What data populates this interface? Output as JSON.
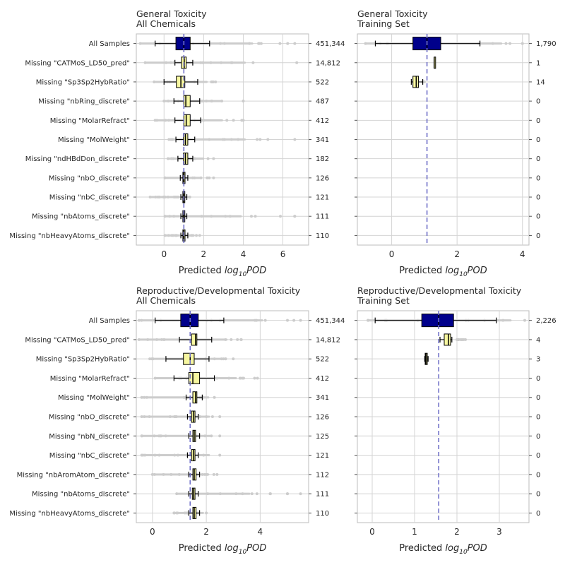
{
  "chart_data": [
    {
      "type": "box",
      "title_lines": [
        "General Toxicity",
        "All Chemicals"
      ],
      "xlabel_prefix": "Predicted ",
      "xlabel_math": "log",
      "xlabel_sub": "10",
      "xlabel_suffix": "POD",
      "xlim": [
        -1.4,
        7.3
      ],
      "xticks": [
        0,
        2,
        4,
        6
      ],
      "xtick_labels": [
        "0",
        "2",
        "4",
        "6"
      ],
      "median_line": 1.0,
      "show_category_labels": true,
      "categories": [
        "All Samples",
        "Missing \"CATMoS_LD50_pred\"",
        "Missing \"Sp3Sp2HybRatio\"",
        "Missing \"nbRing_discrete\"",
        "Missing \"MolarRefract\"",
        "Missing \"MolWeight\"",
        "Missing \"ndHBdDon_discrete\"",
        "Missing \"nbO_discrete\"",
        "Missing \"nbC_discrete\"",
        "Missing \"nbAtoms_discrete\"",
        "Missing \"nbHeavyAtoms_discrete\""
      ],
      "counts": [
        "451,344",
        "14,812",
        "522",
        "487",
        "412",
        "341",
        "182",
        "126",
        "121",
        "111",
        "110"
      ],
      "boxes": [
        {
          "q1": 0.6,
          "median": 1.0,
          "q3": 1.32,
          "whisker_low": -0.45,
          "whisker_high": 2.3,
          "fill": "#00008b",
          "flier_range": [
            -1.2,
            6.6
          ]
        },
        {
          "q1": 0.88,
          "median": 1.02,
          "q3": 1.12,
          "whisker_low": 0.55,
          "whisker_high": 1.45,
          "fill": "#f7f7a0",
          "flier_range": [
            -0.95,
            6.7
          ]
        },
        {
          "q1": 0.62,
          "median": 0.85,
          "q3": 1.05,
          "whisker_low": 0.0,
          "whisker_high": 1.7,
          "fill": "#f7f7a0",
          "flier_range": [
            -0.5,
            2.6
          ]
        },
        {
          "q1": 1.0,
          "median": 1.1,
          "q3": 1.32,
          "whisker_low": 0.5,
          "whisker_high": 1.8,
          "fill": "#f7f7a0",
          "flier_range": [
            0.0,
            4.0
          ]
        },
        {
          "q1": 1.0,
          "median": 1.12,
          "q3": 1.32,
          "whisker_low": 0.55,
          "whisker_high": 1.85,
          "fill": "#f7f7a0",
          "flier_range": [
            -0.45,
            4.0
          ]
        },
        {
          "q1": 0.98,
          "median": 1.08,
          "q3": 1.2,
          "whisker_low": 0.6,
          "whisker_high": 1.55,
          "fill": "#f7f7a0",
          "flier_range": [
            0.25,
            6.6
          ]
        },
        {
          "q1": 0.98,
          "median": 1.08,
          "q3": 1.2,
          "whisker_low": 0.7,
          "whisker_high": 1.45,
          "fill": "#f7f7a0",
          "flier_range": [
            0.2,
            2.5
          ]
        },
        {
          "q1": 0.95,
          "median": 1.0,
          "q3": 1.06,
          "whisker_low": 0.82,
          "whisker_high": 1.2,
          "fill": "#f7f7a0",
          "flier_range": [
            0.05,
            2.5
          ]
        },
        {
          "q1": 0.95,
          "median": 1.0,
          "q3": 1.05,
          "whisker_low": 0.85,
          "whisker_high": 1.15,
          "fill": "#f7f7a0",
          "flier_range": [
            -0.7,
            1.3
          ]
        },
        {
          "q1": 0.95,
          "median": 1.0,
          "q3": 1.05,
          "whisker_low": 0.85,
          "whisker_high": 1.15,
          "fill": "#f7f7a0",
          "flier_range": [
            0.05,
            6.6
          ]
        },
        {
          "q1": 0.95,
          "median": 1.0,
          "q3": 1.06,
          "whisker_low": 0.85,
          "whisker_high": 1.2,
          "fill": "#f7f7a0",
          "flier_range": [
            0.05,
            1.8
          ]
        }
      ]
    },
    {
      "type": "box",
      "title_lines": [
        "General Toxicity",
        "Training Set"
      ],
      "xlabel_prefix": "Predicted ",
      "xlabel_math": "log",
      "xlabel_sub": "10",
      "xlabel_suffix": "POD",
      "xlim": [
        -1.05,
        4.2
      ],
      "xticks": [
        0,
        2,
        4
      ],
      "xtick_labels": [
        "0",
        "2",
        "4"
      ],
      "median_line": 1.08,
      "show_category_labels": false,
      "counts": [
        "1,790",
        "1",
        "14",
        "0",
        "0",
        "0",
        "0",
        "0",
        "0",
        "0",
        "0"
      ],
      "boxes": [
        {
          "q1": 0.65,
          "median": 1.08,
          "q3": 1.5,
          "whisker_low": -0.5,
          "whisker_high": 2.7,
          "fill": "#00008b",
          "flier_range": [
            -0.8,
            4.0
          ]
        },
        {
          "q1": 1.3,
          "median": 1.3,
          "q3": 1.3,
          "whisker_low": 1.3,
          "whisker_high": 1.3,
          "fill": "#f7f7a0",
          "flier_range": null
        },
        {
          "q1": 0.65,
          "median": 0.75,
          "q3": 0.82,
          "whisker_low": 0.6,
          "whisker_high": 0.95,
          "fill": "#f7f7a0",
          "flier_range": [
            0.95,
            1.0
          ]
        },
        null,
        null,
        null,
        null,
        null,
        null,
        null,
        null
      ]
    },
    {
      "type": "box",
      "title_lines": [
        "Reproductive/Developmental Toxicity",
        "All Chemicals"
      ],
      "xlabel_prefix": "Predicted ",
      "xlabel_math": "log",
      "xlabel_sub": "10",
      "xlabel_suffix": "POD",
      "xlim": [
        -0.6,
        5.8
      ],
      "xticks": [
        0,
        2,
        4
      ],
      "xtick_labels": [
        "0",
        "2",
        "4"
      ],
      "median_line": 1.4,
      "show_category_labels": true,
      "categories": [
        "All Samples",
        "Missing \"CATMoS_LD50_pred\"",
        "Missing \"Sp3Sp2HybRatio\"",
        "Missing \"MolarRefract\"",
        "Missing \"MolWeight\"",
        "Missing \"nbO_discrete\"",
        "Missing \"nbN_discrete\"",
        "Missing \"nbC_discrete\"",
        "Missing \"nbAromAtom_discrete\"",
        "Missing \"nbAtoms_discrete\"",
        "Missing \"nbHeavyAtoms_discrete\""
      ],
      "counts": [
        "451,344",
        "14,812",
        "522",
        "412",
        "341",
        "126",
        "125",
        "121",
        "112",
        "111",
        "110"
      ],
      "boxes": [
        {
          "q1": 1.05,
          "median": 1.4,
          "q3": 1.7,
          "whisker_low": 0.1,
          "whisker_high": 2.65,
          "fill": "#00008b",
          "flier_range": [
            -0.5,
            5.5
          ]
        },
        {
          "q1": 1.45,
          "median": 1.6,
          "q3": 1.65,
          "whisker_low": 1.0,
          "whisker_high": 2.2,
          "fill": "#f7f7a0",
          "flier_range": [
            -0.5,
            3.3
          ]
        },
        {
          "q1": 1.15,
          "median": 1.4,
          "q3": 1.55,
          "whisker_low": 0.5,
          "whisker_high": 2.1,
          "fill": "#f7f7a0",
          "flier_range": [
            -0.1,
            3.0
          ]
        },
        {
          "q1": 1.35,
          "median": 1.5,
          "q3": 1.75,
          "whisker_low": 0.8,
          "whisker_high": 2.3,
          "fill": "#f7f7a0",
          "flier_range": [
            0.1,
            3.9
          ]
        },
        {
          "q1": 1.5,
          "median": 1.6,
          "q3": 1.65,
          "whisker_low": 1.25,
          "whisker_high": 1.85,
          "fill": "#f7f7a0",
          "flier_range": [
            -0.4,
            2.3
          ]
        },
        {
          "q1": 1.45,
          "median": 1.52,
          "q3": 1.58,
          "whisker_low": 1.3,
          "whisker_high": 1.7,
          "fill": "#f7f7a0",
          "flier_range": [
            -0.4,
            2.5
          ]
        },
        {
          "q1": 1.5,
          "median": 1.55,
          "q3": 1.6,
          "whisker_low": 1.35,
          "whisker_high": 1.75,
          "fill": "#f7f7a0",
          "flier_range": [
            -0.4,
            2.5
          ]
        },
        {
          "q1": 1.45,
          "median": 1.52,
          "q3": 1.58,
          "whisker_low": 1.3,
          "whisker_high": 1.7,
          "fill": "#f7f7a0",
          "flier_range": [
            -0.4,
            2.5
          ]
        },
        {
          "q1": 1.5,
          "median": 1.55,
          "q3": 1.62,
          "whisker_low": 1.35,
          "whisker_high": 1.75,
          "fill": "#f7f7a0",
          "flier_range": [
            0.0,
            2.4
          ]
        },
        {
          "q1": 1.48,
          "median": 1.53,
          "q3": 1.58,
          "whisker_low": 1.35,
          "whisker_high": 1.7,
          "fill": "#f7f7a0",
          "flier_range": [
            0.9,
            5.5
          ]
        },
        {
          "q1": 1.5,
          "median": 1.55,
          "q3": 1.62,
          "whisker_low": 1.35,
          "whisker_high": 1.75,
          "fill": "#f7f7a0",
          "flier_range": [
            0.8,
            2.0
          ]
        }
      ]
    },
    {
      "type": "box",
      "title_lines": [
        "Reproductive/Developmental Toxicity",
        "Training Set"
      ],
      "xlabel_prefix": "Predicted ",
      "xlabel_math": "log",
      "xlabel_sub": "10",
      "xlabel_suffix": "POD",
      "xlim": [
        -0.35,
        3.7
      ],
      "xticks": [
        0,
        1,
        2,
        3
      ],
      "xtick_labels": [
        "0",
        "1",
        "2",
        "3"
      ],
      "median_line": 1.57,
      "show_category_labels": false,
      "counts": [
        "2,226",
        "4",
        "3",
        "0",
        "0",
        "0",
        "0",
        "0",
        "0",
        "0",
        "0"
      ],
      "boxes": [
        {
          "q1": 1.17,
          "median": 1.57,
          "q3": 1.92,
          "whisker_low": 0.07,
          "whisker_high": 2.93,
          "fill": "#00008b",
          "flier_range": [
            -0.1,
            3.6
          ]
        },
        {
          "q1": 1.7,
          "median": 1.8,
          "q3": 1.85,
          "whisker_low": 1.6,
          "whisker_high": 1.88,
          "fill": "#f7f7a0",
          "flier_range": [
            2.0,
            2.2
          ]
        },
        {
          "q1": 1.25,
          "median": 1.27,
          "q3": 1.3,
          "whisker_low": 1.24,
          "whisker_high": 1.32,
          "fill": "#f7f7a0",
          "flier_range": null
        },
        null,
        null,
        null,
        null,
        null,
        null,
        null,
        null
      ]
    }
  ],
  "colors": {
    "all_samples_box": "#00008b",
    "missing_box": "#f7f7a0",
    "median_ref_line": "#7070c8",
    "flier": "#cccccc",
    "grid": "#d4d4d4",
    "spine": "#bdbdbd"
  }
}
